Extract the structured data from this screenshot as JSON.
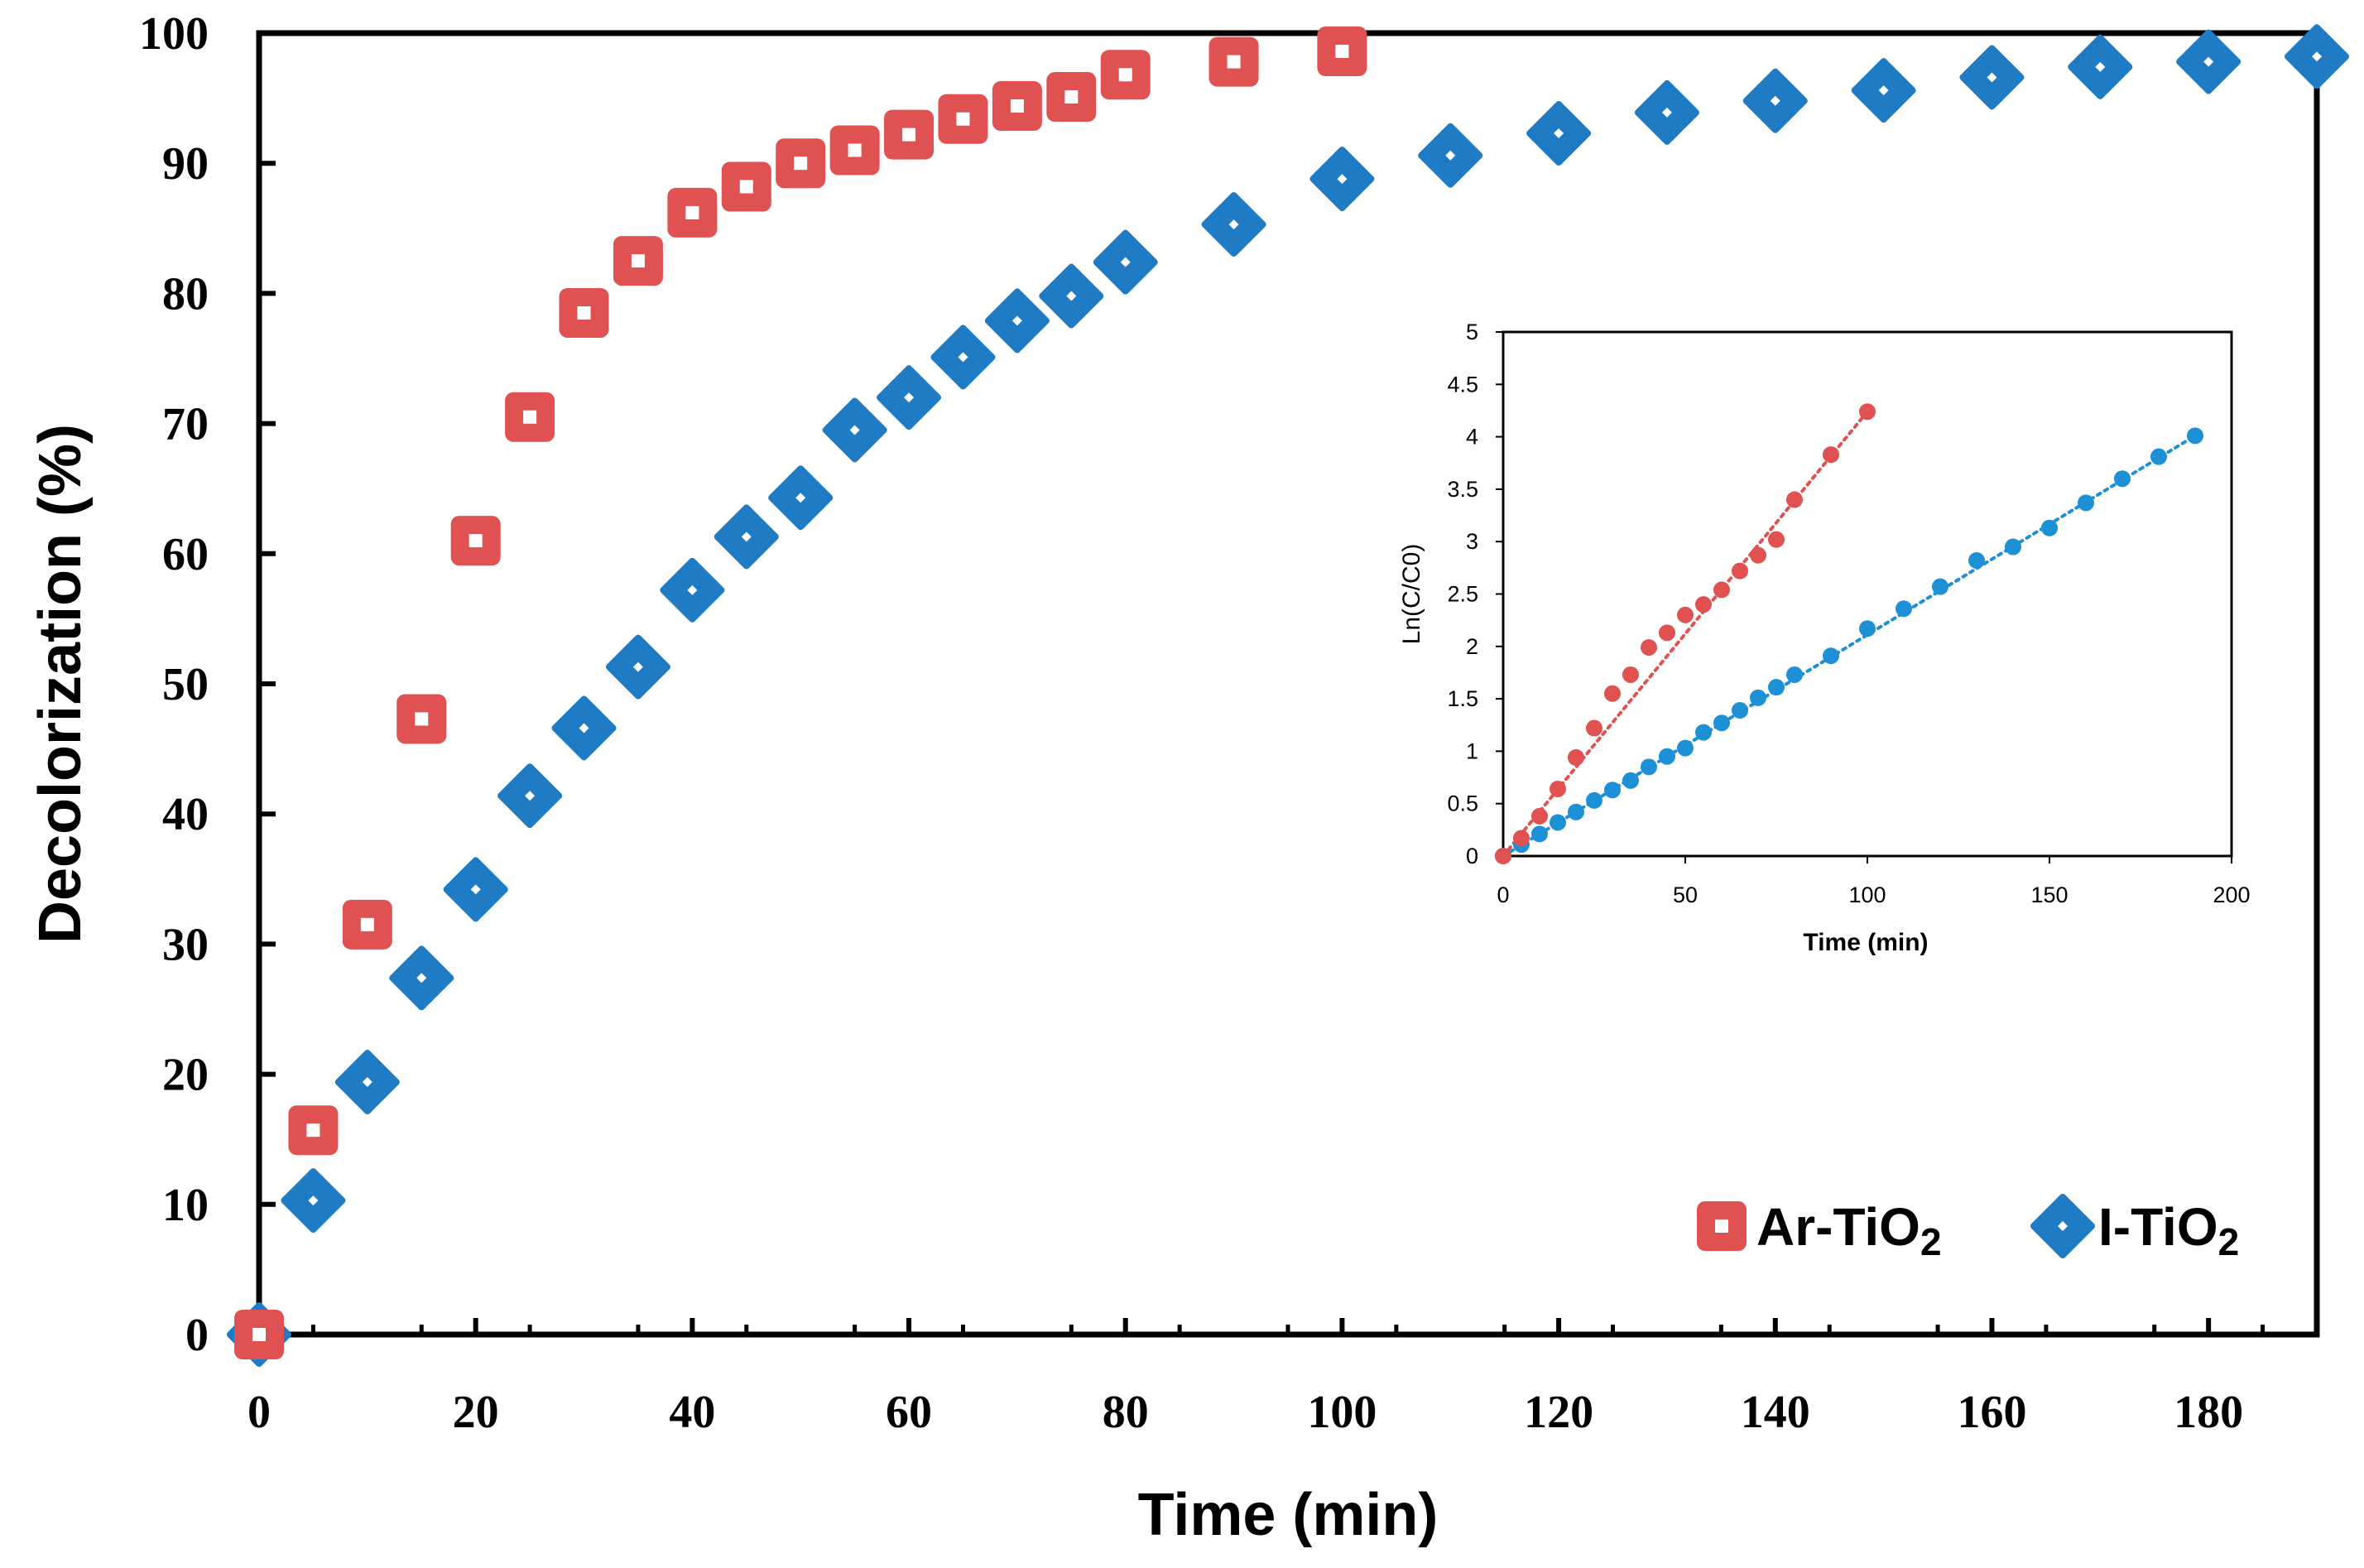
{
  "chart_data": [
    {
      "type": "scatter",
      "title": "",
      "xlabel": "Time (min)",
      "ylabel": "Decolorization (%)",
      "xlim": [
        0,
        190
      ],
      "ylim": [
        0,
        100
      ],
      "xticks": [
        0,
        20,
        40,
        60,
        80,
        100,
        120,
        140,
        160,
        180
      ],
      "yticks": [
        0,
        10,
        20,
        30,
        40,
        50,
        60,
        70,
        80,
        90,
        100
      ],
      "legend_position": "bottom-right",
      "series": [
        {
          "name": "Ar-TiO",
          "subscript": "2",
          "marker": "square",
          "color": "#e05252",
          "x": [
            0,
            5,
            10,
            15,
            20,
            25,
            30,
            35,
            40,
            45,
            50,
            55,
            60,
            65,
            70,
            75,
            80,
            90,
            100
          ],
          "y": [
            0,
            15.7,
            31.5,
            47.3,
            61.0,
            70.5,
            78.5,
            82.5,
            86.2,
            88.2,
            90.0,
            91.0,
            92.2,
            93.4,
            94.4,
            95.1,
            96.8,
            97.8,
            98.6
          ]
        },
        {
          "name": "I-TiO",
          "subscript": "2",
          "marker": "diamond",
          "color": "#1f7cc4",
          "x": [
            0,
            5,
            10,
            15,
            20,
            25,
            30,
            35,
            40,
            45,
            50,
            55,
            60,
            65,
            70,
            75,
            80,
            90,
            100,
            110,
            120,
            130,
            140,
            150,
            160,
            170,
            180,
            190
          ],
          "y": [
            0,
            10.3,
            19.4,
            27.4,
            34.2,
            41.4,
            46.6,
            51.3,
            57.2,
            61.3,
            64.3,
            69.5,
            72.0,
            75.1,
            77.9,
            79.8,
            82.4,
            85.3,
            88.8,
            90.6,
            92.3,
            93.9,
            94.8,
            95.6,
            96.6,
            97.4,
            97.8,
            98.2
          ]
        }
      ]
    },
    {
      "type": "scatter",
      "title": "",
      "xlabel": "Time (min)",
      "ylabel": "Ln(C/C0)",
      "xlim": [
        0,
        200
      ],
      "ylim": [
        0,
        5
      ],
      "xticks": [
        0,
        50,
        100,
        150,
        200
      ],
      "yticks": [
        0,
        0.5,
        1,
        1.5,
        2,
        2.5,
        3,
        3.5,
        4,
        4.5,
        5
      ],
      "yticklabels": [
        "0",
        "0.5",
        "1",
        "1.5",
        "2",
        "2.5",
        "3",
        "3.5",
        "4",
        "4.5",
        "5"
      ],
      "series": [
        {
          "name": "Ar-TiO2",
          "color": "#e05252",
          "x": [
            0,
            5,
            10,
            15,
            20,
            25,
            30,
            35,
            40,
            45,
            50,
            55,
            60,
            65,
            70,
            75,
            80,
            90,
            100
          ],
          "y": [
            0,
            0.17,
            0.38,
            0.64,
            0.94,
            1.22,
            1.55,
            1.73,
            1.99,
            2.13,
            2.3,
            2.4,
            2.54,
            2.72,
            2.87,
            3.02,
            3.4,
            3.83,
            4.24
          ],
          "trendline": {
            "style": "dotted",
            "x": [
              0,
              100
            ],
            "y": [
              0,
              4.24
            ]
          }
        },
        {
          "name": "I-TiO2",
          "color": "#1e90d6",
          "x": [
            0,
            5,
            10,
            15,
            20,
            25,
            30,
            35,
            40,
            45,
            50,
            55,
            60,
            65,
            70,
            75,
            80,
            90,
            100,
            110,
            120,
            130,
            140,
            150,
            160,
            170,
            180,
            190
          ],
          "y": [
            0,
            0.11,
            0.21,
            0.32,
            0.42,
            0.53,
            0.63,
            0.72,
            0.85,
            0.95,
            1.03,
            1.18,
            1.27,
            1.39,
            1.51,
            1.61,
            1.73,
            1.91,
            2.17,
            2.36,
            2.57,
            2.82,
            2.95,
            3.13,
            3.37,
            3.6,
            3.81,
            4.01
          ],
          "trendline": {
            "style": "dotted",
            "x": [
              0,
              190
            ],
            "y": [
              0,
              4.01
            ]
          }
        }
      ]
    }
  ]
}
